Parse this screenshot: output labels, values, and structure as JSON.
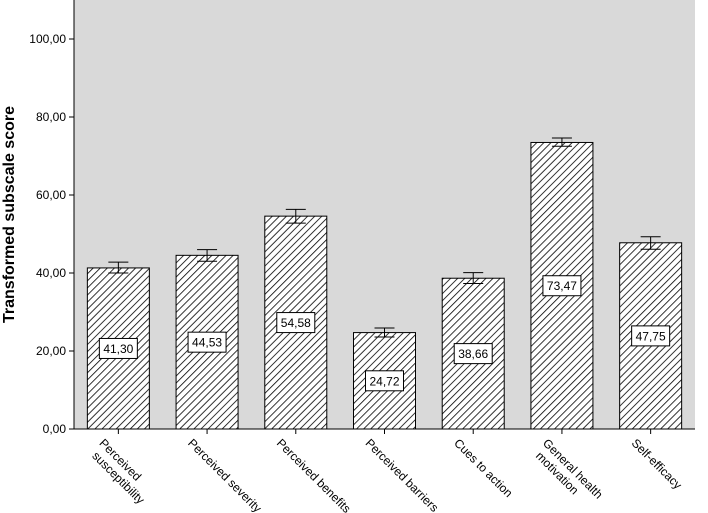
{
  "chart_data": {
    "type": "bar",
    "title": "",
    "xlabel": "",
    "ylabel": "Transformed subscale score",
    "ylim": [
      0,
      110
    ],
    "yticks": [
      "0,00",
      "20,00",
      "40,00",
      "60,00",
      "80,00",
      "100,00"
    ],
    "ytick_values": [
      0,
      20,
      40,
      60,
      80,
      100
    ],
    "categories": [
      "Perceived susceptibility",
      "Perceived severity",
      "Perceived benefits",
      "Perceived barriers",
      "Cues to action",
      "General health motivation",
      "Self-efficacy"
    ],
    "category_lines": [
      [
        "Perceived",
        "susceptibility"
      ],
      [
        "Perceived severity"
      ],
      [
        "Perceived benefits"
      ],
      [
        "Perceived barriers"
      ],
      [
        "Cues to action"
      ],
      [
        "General health",
        "motivation"
      ],
      [
        "Self-efficacy"
      ]
    ],
    "values": [
      41.3,
      44.53,
      54.58,
      24.72,
      38.66,
      73.47,
      47.75
    ],
    "value_labels": [
      "41,30",
      "44,53",
      "54,58",
      "24,72",
      "38,66",
      "73,47",
      "47,75"
    ],
    "error_low": [
      40.0,
      43.0,
      52.8,
      23.6,
      37.3,
      72.5,
      46.1
    ],
    "error_high": [
      42.8,
      46.0,
      56.3,
      25.9,
      40.1,
      74.6,
      49.3
    ],
    "grid": false,
    "legend": "none",
    "colors": {
      "plot_background": "#d9d9d9",
      "bar_fill": "#ffffff",
      "hatch": "#000000",
      "axis": "#000000"
    }
  }
}
